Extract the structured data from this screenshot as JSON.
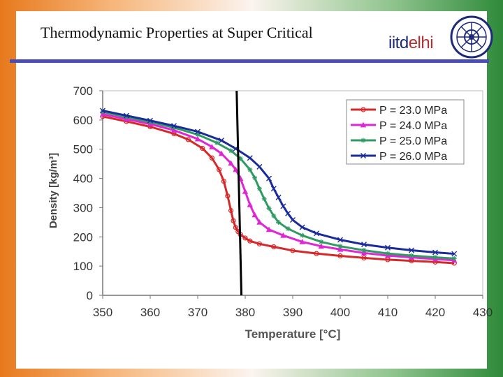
{
  "slide": {
    "title": "Thermodynamic Properties at Super Critical",
    "logo_text_a": "iitd",
    "logo_text_b": "elhi"
  },
  "colors": {
    "rule": "#4a4db5",
    "logo_a": "#1d2a7a",
    "logo_b": "#b23030"
  },
  "chart_data": {
    "type": "line",
    "title": "",
    "xlabel": "Temperature [°C]",
    "ylabel": "Density [kg/m³]",
    "xlim": [
      350,
      430
    ],
    "ylim": [
      0,
      700
    ],
    "x_ticks": [
      350,
      360,
      370,
      380,
      390,
      400,
      410,
      420,
      430
    ],
    "y_ticks": [
      0,
      100,
      200,
      300,
      400,
      500,
      600,
      700
    ],
    "grid": false,
    "legend_position": "top-right",
    "vertical_marker_x": [
      378.2,
      379.2
    ],
    "series": [
      {
        "name": "P = 23.0 MPa",
        "color": "#d62828",
        "marker": "circle",
        "x": [
          350,
          355,
          360,
          365,
          368,
          371,
          373,
          374.5,
          375.5,
          376.3,
          377,
          377.5,
          378,
          378.5,
          379,
          380,
          381,
          383,
          386,
          390,
          395,
          400,
          405,
          410,
          415,
          420,
          424
        ],
        "y": [
          612,
          595,
          577,
          553,
          533,
          503,
          470,
          430,
          390,
          340,
          290,
          255,
          232,
          218,
          208,
          196,
          186,
          176,
          166,
          153,
          143,
          135,
          128,
          122,
          118,
          114,
          110
        ]
      },
      {
        "name": "P = 24.0 MPa",
        "color": "#e026d4",
        "marker": "triangle",
        "x": [
          350,
          355,
          360,
          365,
          370,
          373,
          375,
          377,
          378,
          379,
          380,
          381,
          382,
          383,
          385,
          388,
          392,
          396,
          400,
          405,
          410,
          415,
          420,
          424
        ],
        "y": [
          620,
          603,
          586,
          565,
          535,
          508,
          485,
          452,
          430,
          400,
          355,
          310,
          275,
          250,
          225,
          205,
          183,
          168,
          157,
          145,
          136,
          130,
          124,
          120
        ]
      },
      {
        "name": "P = 25.0 MPa",
        "color": "#2f9b63",
        "marker": "star",
        "x": [
          350,
          355,
          360,
          365,
          370,
          374,
          377,
          379,
          381,
          382,
          383,
          384,
          385,
          386,
          387,
          389,
          392,
          396,
          400,
          405,
          410,
          415,
          420,
          424
        ],
        "y": [
          628,
          610,
          593,
          574,
          550,
          522,
          495,
          468,
          430,
          402,
          365,
          330,
          298,
          272,
          250,
          228,
          205,
          183,
          168,
          154,
          143,
          136,
          130,
          126
        ]
      },
      {
        "name": "P = 26.0 MPa",
        "color": "#1a2b9c",
        "marker": "x",
        "x": [
          350,
          355,
          360,
          365,
          370,
          375,
          378,
          381,
          383,
          385,
          386,
          387,
          388,
          389,
          390,
          392,
          395,
          400,
          405,
          410,
          415,
          420,
          424
        ],
        "y": [
          632,
          615,
          598,
          580,
          560,
          530,
          502,
          470,
          440,
          400,
          365,
          335,
          305,
          280,
          258,
          233,
          212,
          190,
          174,
          163,
          154,
          147,
          142
        ]
      }
    ]
  }
}
